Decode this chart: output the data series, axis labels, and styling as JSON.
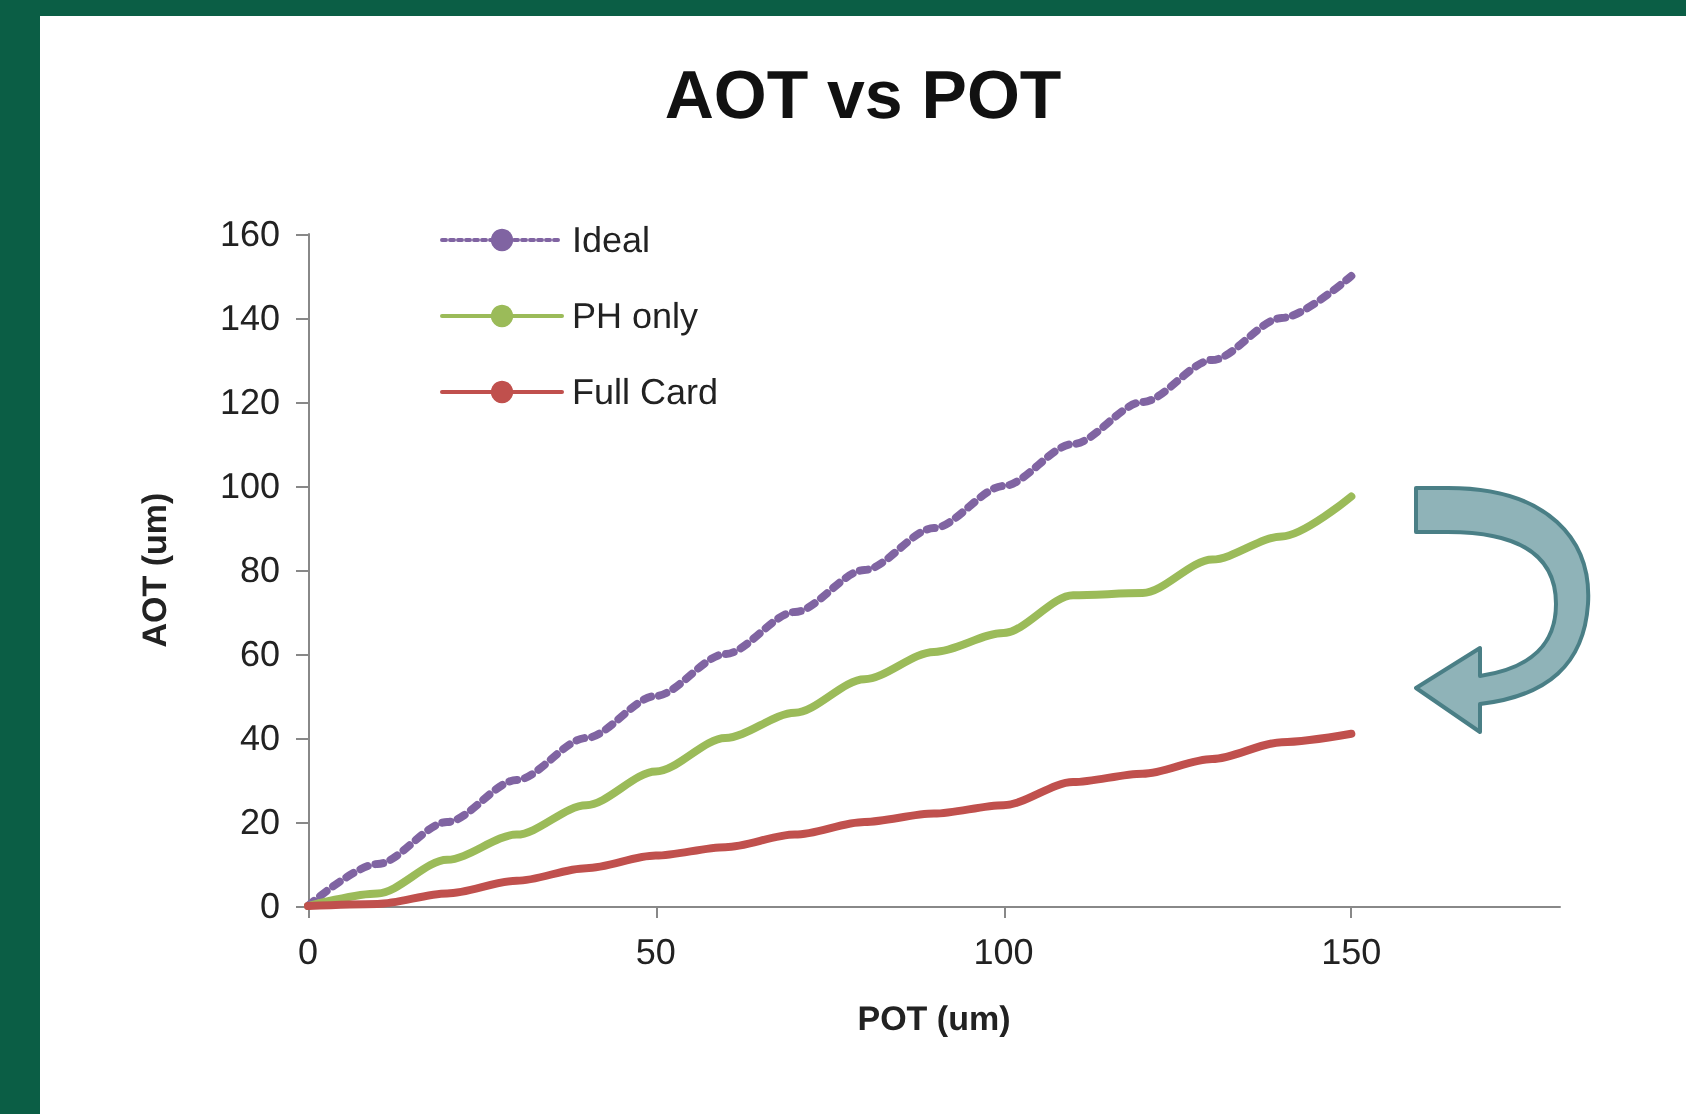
{
  "chart_data": {
    "type": "line",
    "title": "AOT vs POT",
    "xlabel": "POT (um)",
    "ylabel": "AOT (um)",
    "x": [
      0,
      10,
      20,
      30,
      40,
      50,
      60,
      70,
      80,
      90,
      100,
      110,
      120,
      130,
      140,
      150
    ],
    "series": [
      {
        "name": "Ideal",
        "color": "#8064a2",
        "line_style": "dotted",
        "values": [
          0,
          10,
          20,
          30,
          40,
          50,
          60,
          70,
          80,
          90,
          100,
          110,
          120,
          130,
          140,
          150
        ]
      },
      {
        "name": "PH only",
        "color": "#9bbb59",
        "line_style": "solid",
        "values": [
          0,
          3,
          11,
          17,
          24,
          32,
          40,
          46,
          54,
          60.5,
          65,
          74,
          74.5,
          82.5,
          88,
          97.5
        ]
      },
      {
        "name": "Full Card",
        "color": "#c0504d",
        "line_style": "solid",
        "values": [
          0,
          0.5,
          3,
          6,
          9,
          12,
          14,
          17,
          20,
          22,
          24,
          29.5,
          31.5,
          35,
          39,
          41
        ]
      }
    ],
    "xlim": [
      0,
      180
    ],
    "xticks": [
      0,
      50,
      100,
      150
    ],
    "ylim": [
      0,
      160
    ],
    "yticks": [
      0,
      20,
      40,
      60,
      80,
      100,
      120,
      140,
      160
    ],
    "grid": false,
    "legend": "top left",
    "marker": "none"
  }
}
